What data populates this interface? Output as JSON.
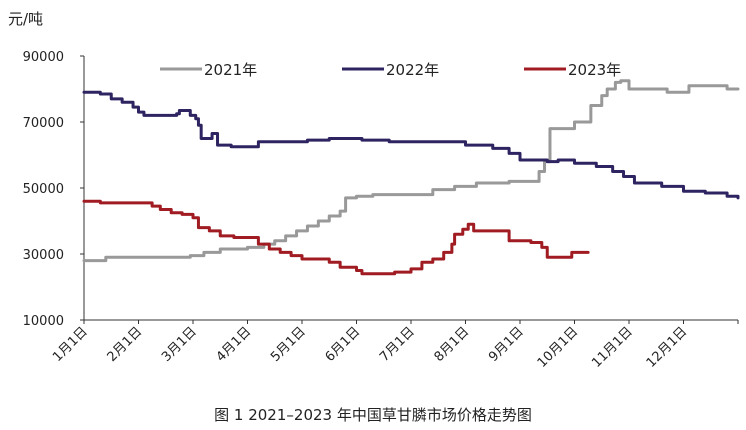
{
  "chart_data": {
    "type": "line",
    "caption": "图 1 2021–2023 年中国草甘膦市场价格走势图",
    "ylabel": "元/吨",
    "xlabel": "",
    "ylim": [
      10000,
      90000
    ],
    "yticks": [
      "90000",
      "70000",
      "50000",
      "30000",
      "10000"
    ],
    "ytick_values": [
      90000,
      70000,
      50000,
      30000,
      10000
    ],
    "xlim": [
      0,
      12
    ],
    "xticks": [
      "1月1日",
      "2月1日",
      "3月1日",
      "4月1日",
      "5月1日",
      "6月1日",
      "7月1日",
      "8月1日",
      "9月1日",
      "10月1日",
      "11月1日",
      "12月1日"
    ],
    "legend_position": "top",
    "grid": false,
    "series": [
      {
        "name": "2021年",
        "color": "#999999",
        "points": [
          [
            0.0,
            28000
          ],
          [
            0.4,
            29000
          ],
          [
            0.8,
            29000
          ],
          [
            1.5,
            29000
          ],
          [
            1.95,
            29500
          ],
          [
            2.2,
            30500
          ],
          [
            2.5,
            31500
          ],
          [
            3.0,
            32000
          ],
          [
            3.3,
            33000
          ],
          [
            3.5,
            34000
          ],
          [
            3.7,
            35500
          ],
          [
            3.9,
            37000
          ],
          [
            4.1,
            38500
          ],
          [
            4.3,
            40000
          ],
          [
            4.5,
            41500
          ],
          [
            4.7,
            43000
          ],
          [
            4.8,
            47000
          ],
          [
            5.0,
            47500
          ],
          [
            5.3,
            48000
          ],
          [
            5.8,
            48000
          ],
          [
            6.2,
            48000
          ],
          [
            6.4,
            49500
          ],
          [
            6.8,
            50500
          ],
          [
            7.2,
            51500
          ],
          [
            7.8,
            52000
          ],
          [
            8.3,
            52000
          ],
          [
            8.35,
            55000
          ],
          [
            8.45,
            58000
          ],
          [
            8.55,
            68000
          ],
          [
            8.8,
            68000
          ],
          [
            9.0,
            70000
          ],
          [
            9.2,
            70000
          ],
          [
            9.3,
            75000
          ],
          [
            9.5,
            78000
          ],
          [
            9.6,
            80000
          ],
          [
            9.75,
            82000
          ],
          [
            9.85,
            82500
          ],
          [
            10.0,
            80000
          ],
          [
            10.5,
            80000
          ],
          [
            10.7,
            79000
          ],
          [
            11.0,
            79000
          ],
          [
            11.1,
            81000
          ],
          [
            11.7,
            81000
          ],
          [
            11.8,
            80000
          ],
          [
            12.0,
            80000
          ]
        ]
      },
      {
        "name": "2022年",
        "color": "#2e2461",
        "points": [
          [
            0.0,
            79000
          ],
          [
            0.3,
            78500
          ],
          [
            0.5,
            77000
          ],
          [
            0.7,
            76000
          ],
          [
            0.9,
            74500
          ],
          [
            1.0,
            73000
          ],
          [
            1.1,
            72000
          ],
          [
            1.5,
            72000
          ],
          [
            1.7,
            72500
          ],
          [
            1.75,
            73500
          ],
          [
            1.85,
            73500
          ],
          [
            1.95,
            72000
          ],
          [
            2.05,
            71000
          ],
          [
            2.1,
            69000
          ],
          [
            2.15,
            65000
          ],
          [
            2.3,
            65000
          ],
          [
            2.35,
            66500
          ],
          [
            2.45,
            63000
          ],
          [
            2.7,
            62500
          ],
          [
            3.1,
            62500
          ],
          [
            3.2,
            64000
          ],
          [
            3.8,
            64000
          ],
          [
            4.1,
            64500
          ],
          [
            4.5,
            65000
          ],
          [
            5.1,
            64500
          ],
          [
            5.6,
            64000
          ],
          [
            6.5,
            64000
          ],
          [
            7.0,
            63000
          ],
          [
            7.5,
            62000
          ],
          [
            7.8,
            60500
          ],
          [
            8.0,
            58500
          ],
          [
            8.5,
            58000
          ],
          [
            8.7,
            58500
          ],
          [
            9.0,
            57500
          ],
          [
            9.4,
            56500
          ],
          [
            9.7,
            55000
          ],
          [
            9.9,
            53500
          ],
          [
            10.1,
            51500
          ],
          [
            10.6,
            50500
          ],
          [
            11.0,
            49000
          ],
          [
            11.4,
            48500
          ],
          [
            11.8,
            47500
          ],
          [
            12.0,
            47000
          ]
        ]
      },
      {
        "name": "2023年",
        "color": "#a01c22",
        "points": [
          [
            0.0,
            46000
          ],
          [
            0.3,
            45500
          ],
          [
            0.8,
            45500
          ],
          [
            1.1,
            45500
          ],
          [
            1.25,
            44500
          ],
          [
            1.4,
            43500
          ],
          [
            1.6,
            42500
          ],
          [
            1.8,
            42000
          ],
          [
            2.0,
            41000
          ],
          [
            2.1,
            38000
          ],
          [
            2.3,
            37000
          ],
          [
            2.5,
            35500
          ],
          [
            2.75,
            35000
          ],
          [
            3.0,
            35000
          ],
          [
            3.2,
            33000
          ],
          [
            3.4,
            31500
          ],
          [
            3.6,
            30500
          ],
          [
            3.8,
            29500
          ],
          [
            4.0,
            28500
          ],
          [
            4.5,
            27500
          ],
          [
            4.7,
            26000
          ],
          [
            5.0,
            25000
          ],
          [
            5.1,
            24000
          ],
          [
            5.5,
            24000
          ],
          [
            5.7,
            24500
          ],
          [
            6.0,
            25500
          ],
          [
            6.2,
            27500
          ],
          [
            6.4,
            28500
          ],
          [
            6.6,
            30500
          ],
          [
            6.75,
            33000
          ],
          [
            6.8,
            36000
          ],
          [
            6.95,
            37500
          ],
          [
            7.05,
            39000
          ],
          [
            7.15,
            37000
          ],
          [
            7.7,
            37000
          ],
          [
            7.8,
            34000
          ],
          [
            8.2,
            33500
          ],
          [
            8.4,
            32000
          ],
          [
            8.5,
            29000
          ],
          [
            8.9,
            29000
          ],
          [
            8.95,
            30500
          ],
          [
            9.25,
            30500
          ]
        ]
      }
    ]
  }
}
